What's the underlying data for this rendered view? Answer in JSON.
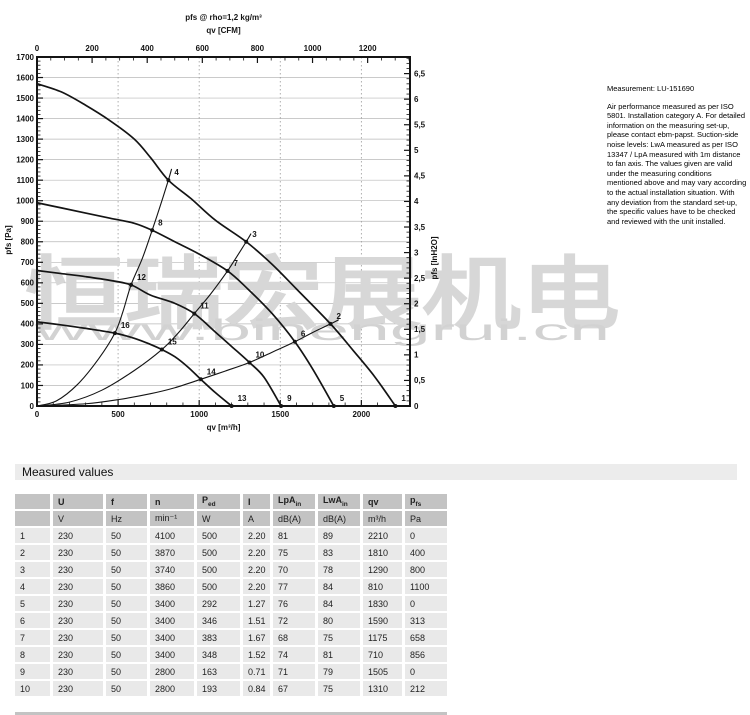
{
  "chart_data": {
    "type": "line",
    "title": "pfs @ rho=1,2 kg/m³",
    "top_axis": {
      "label": "qv [CFM]",
      "ticks": [
        0,
        200,
        400,
        600,
        800,
        1000,
        1200
      ],
      "cfm_to_m3h": 1.699
    },
    "bottom_axis": {
      "label": "qv [m³/h]",
      "ticks": [
        0,
        500,
        1000,
        1500,
        2000
      ],
      "range": [
        0,
        2300
      ],
      "minor_step": 100
    },
    "left_axis": {
      "label": "pfs [Pa]",
      "range": [
        0,
        1700
      ],
      "major_step": 100,
      "minor_step": 20
    },
    "right_axis": {
      "label": "pfs [InH2O]",
      "inh2o_to_pa": 249.1,
      "minor_step": 0.1,
      "ticks": [
        [
          0,
          "0"
        ],
        [
          0.5,
          "0,5"
        ],
        [
          1,
          "1"
        ],
        [
          1.5,
          "1,5"
        ],
        [
          2,
          "2"
        ],
        [
          2.5,
          "2,5"
        ],
        [
          3,
          "3"
        ],
        [
          3.5,
          "3,5"
        ],
        [
          4,
          "4"
        ],
        [
          4.5,
          "4,5"
        ],
        [
          5,
          "5"
        ],
        [
          5.5,
          "5,5"
        ],
        [
          6,
          "6"
        ],
        [
          6.5,
          "6,5"
        ]
      ]
    },
    "grid": {
      "horizontal_pa": [
        100,
        200,
        300,
        400,
        500,
        600,
        700,
        800,
        900,
        1000,
        1100,
        1200,
        1300,
        1400,
        1500,
        1600
      ],
      "vertical_m3h": [
        500,
        1000,
        1500,
        2000
      ]
    },
    "fan_curves": [
      {
        "name": "fan_curve_pts_1_4",
        "points": [
          [
            0,
            1570
          ],
          [
            150,
            1530
          ],
          [
            300,
            1465
          ],
          [
            450,
            1390
          ],
          [
            600,
            1300
          ],
          [
            700,
            1210
          ],
          [
            810,
            1100
          ],
          [
            950,
            1010
          ],
          [
            1100,
            905
          ],
          [
            1290,
            800
          ],
          [
            1450,
            690
          ],
          [
            1600,
            570
          ],
          [
            1810,
            400
          ],
          [
            1950,
            270
          ],
          [
            2080,
            145
          ],
          [
            2210,
            0
          ]
        ]
      },
      {
        "name": "fan_curve_pts_5_8",
        "points": [
          [
            0,
            990
          ],
          [
            150,
            965
          ],
          [
            300,
            940
          ],
          [
            450,
            915
          ],
          [
            600,
            890
          ],
          [
            710,
            856
          ],
          [
            850,
            800
          ],
          [
            1000,
            740
          ],
          [
            1175,
            658
          ],
          [
            1300,
            570
          ],
          [
            1450,
            450
          ],
          [
            1590,
            313
          ],
          [
            1700,
            180
          ],
          [
            1830,
            0
          ]
        ]
      },
      {
        "name": "fan_curve_pts_9_12",
        "points": [
          [
            0,
            660
          ],
          [
            150,
            645
          ],
          [
            300,
            630
          ],
          [
            450,
            612
          ],
          [
            580,
            590
          ],
          [
            700,
            540
          ],
          [
            850,
            500
          ],
          [
            970,
            450
          ],
          [
            1100,
            360
          ],
          [
            1200,
            290
          ],
          [
            1310,
            212
          ],
          [
            1400,
            140
          ],
          [
            1505,
            0
          ]
        ]
      },
      {
        "name": "fan_curve_pts_13_16",
        "points": [
          [
            0,
            410
          ],
          [
            150,
            395
          ],
          [
            300,
            378
          ],
          [
            480,
            355
          ],
          [
            600,
            330
          ],
          [
            700,
            300
          ],
          [
            770,
            275
          ],
          [
            850,
            240
          ],
          [
            930,
            190
          ],
          [
            1010,
            130
          ],
          [
            1100,
            65
          ],
          [
            1200,
            0
          ]
        ]
      }
    ],
    "system_curves": [
      {
        "name": "system_curve_pts_4_8_12_16",
        "points": [
          [
            0,
            0
          ],
          [
            120,
            25
          ],
          [
            250,
            105
          ],
          [
            380,
            230
          ],
          [
            480,
            355
          ],
          [
            530,
            460
          ],
          [
            580,
            590
          ],
          [
            650,
            720
          ],
          [
            710,
            856
          ],
          [
            760,
            975
          ],
          [
            810,
            1100
          ],
          [
            830,
            1155
          ]
        ]
      },
      {
        "name": "system_curve_pts_3_7_11_15",
        "points": [
          [
            0,
            0
          ],
          [
            200,
            19
          ],
          [
            400,
            77
          ],
          [
            600,
            173
          ],
          [
            770,
            275
          ],
          [
            870,
            355
          ],
          [
            970,
            450
          ],
          [
            1070,
            545
          ],
          [
            1175,
            658
          ],
          [
            1230,
            725
          ],
          [
            1290,
            800
          ],
          [
            1320,
            840
          ]
        ]
      },
      {
        "name": "system_curve_pts_2_6_10_14",
        "points": [
          [
            0,
            0
          ],
          [
            300,
            11
          ],
          [
            500,
            31
          ],
          [
            700,
            60
          ],
          [
            850,
            89
          ],
          [
            1010,
            130
          ],
          [
            1160,
            170
          ],
          [
            1310,
            212
          ],
          [
            1450,
            262
          ],
          [
            1590,
            313
          ],
          [
            1700,
            358
          ],
          [
            1810,
            400
          ],
          [
            1860,
            420
          ]
        ]
      }
    ],
    "operating_points": [
      {
        "label": "1",
        "q": 2210,
        "p": 0
      },
      {
        "label": "2",
        "q": 1810,
        "p": 400
      },
      {
        "label": "3",
        "q": 1290,
        "p": 800
      },
      {
        "label": "4",
        "q": 810,
        "p": 1100
      },
      {
        "label": "5",
        "q": 1830,
        "p": 0
      },
      {
        "label": "6",
        "q": 1590,
        "p": 313
      },
      {
        "label": "7",
        "q": 1175,
        "p": 658
      },
      {
        "label": "8",
        "q": 710,
        "p": 856
      },
      {
        "label": "9",
        "q": 1505,
        "p": 0
      },
      {
        "label": "10",
        "q": 1310,
        "p": 212
      },
      {
        "label": "11",
        "q": 970,
        "p": 450
      },
      {
        "label": "12",
        "q": 580,
        "p": 590
      },
      {
        "label": "13",
        "q": 1200,
        "p": 0
      },
      {
        "label": "14",
        "q": 1010,
        "p": 130
      },
      {
        "label": "15",
        "q": 770,
        "p": 275
      },
      {
        "label": "16",
        "q": 480,
        "p": 355
      }
    ],
    "watermark": {
      "line1": "恒瑞宏展机电",
      "line2": "www.binengrui.cn"
    }
  },
  "notes": {
    "measurement": "Measurement: LU-151690",
    "body": "Air performance measured as per ISO 5801. Installation category A. For detailed information on the measuring set-up, please contact ebm-papst. Suction-side noise levels: LwA measured as per ISO 13347 / LpA measured with 1m distance to fan axis. The values given are valid under the measuring conditions mentioned above and may vary according to the actual installation situation. With any deviation from the standard set-up, the specific values have to be checked and reviewed with the unit installed."
  },
  "table": {
    "title": "Measured values",
    "headers": [
      {
        "main": "",
        "sub": ""
      },
      {
        "main": "U",
        "sub": ""
      },
      {
        "main": "f",
        "sub": ""
      },
      {
        "main": "n",
        "sub": ""
      },
      {
        "main": "P",
        "sub": "ed"
      },
      {
        "main": "I",
        "sub": ""
      },
      {
        "main": "LpA",
        "sub": "in"
      },
      {
        "main": "LwA",
        "sub": "in"
      },
      {
        "main": "qv",
        "sub": ""
      },
      {
        "main": "p",
        "sub": "fs"
      }
    ],
    "units": [
      "",
      "V",
      "Hz",
      "min⁻¹",
      "W",
      "A",
      "dB(A)",
      "dB(A)",
      "m³/h",
      "Pa"
    ],
    "rows": [
      [
        "1",
        "230",
        "50",
        "4100",
        "500",
        "2.20",
        "81",
        "89",
        "2210",
        "0"
      ],
      [
        "2",
        "230",
        "50",
        "3870",
        "500",
        "2.20",
        "75",
        "83",
        "1810",
        "400"
      ],
      [
        "3",
        "230",
        "50",
        "3740",
        "500",
        "2.20",
        "70",
        "78",
        "1290",
        "800"
      ],
      [
        "4",
        "230",
        "50",
        "3860",
        "500",
        "2.20",
        "77",
        "84",
        "810",
        "1100"
      ],
      [
        "5",
        "230",
        "50",
        "3400",
        "292",
        "1.27",
        "76",
        "84",
        "1830",
        "0"
      ],
      [
        "6",
        "230",
        "50",
        "3400",
        "346",
        "1.51",
        "72",
        "80",
        "1590",
        "313"
      ],
      [
        "7",
        "230",
        "50",
        "3400",
        "383",
        "1.67",
        "68",
        "75",
        "1175",
        "658"
      ],
      [
        "8",
        "230",
        "50",
        "3400",
        "348",
        "1.52",
        "74",
        "81",
        "710",
        "856"
      ],
      [
        "9",
        "230",
        "50",
        "2800",
        "163",
        "0.71",
        "71",
        "79",
        "1505",
        "0"
      ],
      [
        "10",
        "230",
        "50",
        "2800",
        "193",
        "0.84",
        "67",
        "75",
        "1310",
        "212"
      ]
    ]
  }
}
